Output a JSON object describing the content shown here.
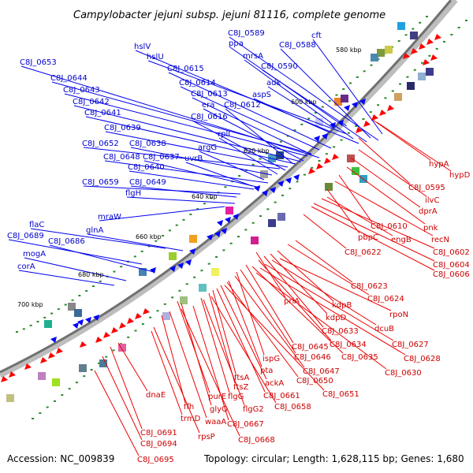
{
  "title": "Campylobacter jejuni subsp. jejuni 81116, complete genome",
  "footer": {
    "accession": "Accession: NC_009839",
    "summary": "Topology: circular; Length: 1,628,115 bp; Genes: 1,680"
  },
  "kbp_ticks": [
    "580 kbp",
    "600 kbp",
    "620 kbp",
    "640 kbp",
    "660 kbp",
    "680 kbp",
    "700 kbp"
  ],
  "forward_labels": [
    "C8J_0589",
    "cft",
    "ppa",
    "C8J_0588",
    "hslV",
    "mrsA",
    "hslU",
    "C8J_0590",
    "C8J_0653",
    "C8J_0615",
    "adk",
    "C8J_0644",
    "C8J_0614",
    "aspS",
    "C8J_0643",
    "C8J_0613",
    "C8J_0642",
    "era",
    "C8J_0612",
    "C8J_0641",
    "C8J_0616",
    "C8J_0639",
    "rplI",
    "C8J_0652",
    "C8J_0638",
    "argG",
    "C8J_0648",
    "C8J_0637",
    "uvrB",
    "C8J_0640",
    "C8J_0659",
    "C8J_0649",
    "flgH",
    "mraW",
    "flaC",
    "glnA",
    "C8J_0689",
    "C8J_0686",
    "mogA",
    "corA"
  ],
  "reverse_labels": [
    "hypA",
    "hypD",
    "C8J_0595",
    "ilvC",
    "dprA",
    "pnk",
    "C8J_0610",
    "recN",
    "pbpC",
    "engB",
    "C8J_0602",
    "C8J_0604",
    "C8J_0622",
    "C8J_0606",
    "C8J_0623",
    "C8J_0624",
    "priA",
    "kdpB",
    "rpoN",
    "kdpD",
    "dcuB",
    "C8J_0633",
    "C8J_0645",
    "C8J_0634",
    "C8J_0627",
    "ispG",
    "C8J_0646",
    "C8J_0635",
    "C8J_0628",
    "pta",
    "C8J_0647",
    "C8J_0630",
    "ftsA",
    "ackA",
    "C8J_0650",
    "ftsZ",
    "C8J_0661",
    "C8J_0651",
    "dnaE",
    "purE",
    "flgG",
    "ffh",
    "glyQ",
    "flgG2",
    "C8J_0658",
    "trmD",
    "waaA",
    "C8J_0667",
    "rpsP",
    "C8J_0668",
    "C8J_0691",
    "C8J_0694",
    "C8J_0695"
  ],
  "colors": {
    "forward_gene": "#0000ff",
    "reverse_gene": "#ff0000",
    "backbone": "#6e6e6e",
    "gc_dot": "#2a8a2a"
  }
}
